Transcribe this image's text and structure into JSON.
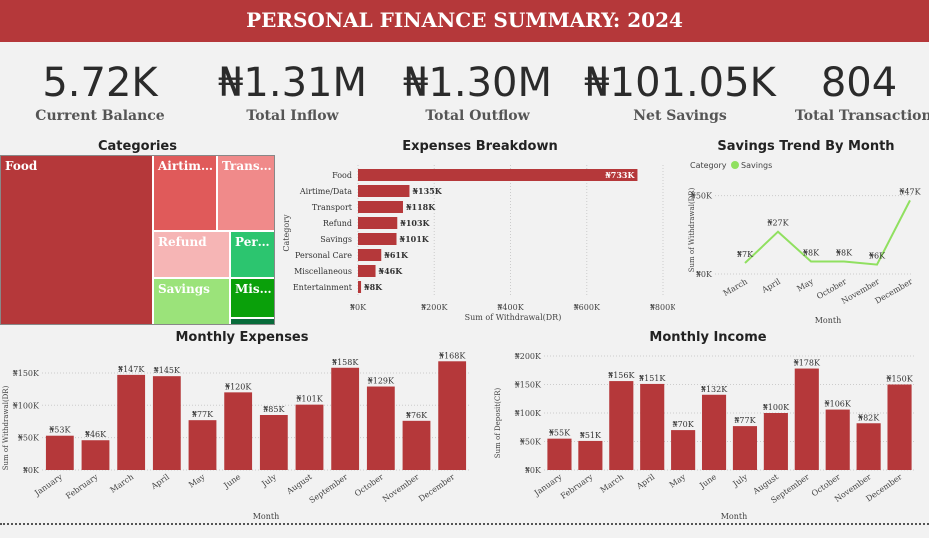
{
  "header": {
    "title": "PERSONAL FINANCE SUMMARY: 2024"
  },
  "kpis": [
    {
      "value": "5.72K",
      "label": "Current Balance"
    },
    {
      "value": "₦1.31M",
      "label": "Total Inflow"
    },
    {
      "value": "₦1.30M",
      "label": "Total Outflow"
    },
    {
      "value": "₦101.05K",
      "label": "Net Savings"
    },
    {
      "value": "804",
      "label": "Total Transactions"
    }
  ],
  "colors": {
    "brand": "#b5383a",
    "savings_line": "#90e060"
  },
  "chart_data": [
    {
      "type": "treemap",
      "title": "Categories",
      "items": [
        {
          "label": "Food",
          "color": "#b5383a"
        },
        {
          "label": "Airtim…",
          "color": "#e05a5a"
        },
        {
          "label": "Trans…",
          "color": "#f08a8a"
        },
        {
          "label": "Refund",
          "color": "#f6b5b5"
        },
        {
          "label": "Per…",
          "color": "#2cc56f"
        },
        {
          "label": "Savings",
          "color": "#9be37a"
        },
        {
          "label": "Mis…",
          "color": "#0aa00a"
        },
        {
          "label": "",
          "color": "#086b3a"
        }
      ]
    },
    {
      "type": "bar",
      "orientation": "horizontal",
      "title": "Expenses Breakdown",
      "xlabel": "Sum of Withdrawal(DR)",
      "ylabel": "Category",
      "xlim": [
        0,
        800000
      ],
      "xticks": [
        "₦0K",
        "₦200K",
        "₦400K",
        "₦600K",
        "₦800K"
      ],
      "categories": [
        "Food",
        "Airtime/Data",
        "Transport",
        "Refund",
        "Savings",
        "Personal Care",
        "Miscellaneous",
        "Entertainment"
      ],
      "values": [
        733000,
        135000,
        118000,
        103000,
        101000,
        61000,
        46000,
        8000
      ],
      "data_labels": [
        "₦733K",
        "₦135K",
        "₦118K",
        "₦103K",
        "₦101K",
        "₦61K",
        "₦46K",
        "₦8K"
      ]
    },
    {
      "type": "line",
      "title": "Savings Trend By Month",
      "xlabel": "Month",
      "ylabel": "Sum of Withdrawal(DR)",
      "legend_title": "Category",
      "series": [
        {
          "name": "Savings",
          "values": [
            7000,
            27000,
            8000,
            8000,
            6000,
            47000
          ]
        }
      ],
      "categories": [
        "March",
        "April",
        "May",
        "October",
        "November",
        "December"
      ],
      "data_labels": [
        "₦7K",
        "₦27K",
        "₦8K",
        "₦8K",
        "₦6K",
        "₦47K"
      ],
      "ylim": [
        0,
        60000
      ],
      "yticks": [
        "₦0K",
        "₦50K"
      ]
    },
    {
      "type": "bar",
      "title": "Monthly Expenses",
      "xlabel": "Month",
      "ylabel": "Sum of Withdrawal(DR)",
      "ylim": [
        0,
        170000
      ],
      "yticks": [
        "₦0K",
        "₦50K",
        "₦100K",
        "₦150K"
      ],
      "categories": [
        "January",
        "February",
        "March",
        "April",
        "May",
        "June",
        "July",
        "August",
        "September",
        "October",
        "November",
        "December"
      ],
      "values": [
        53000,
        46000,
        147000,
        145000,
        77000,
        120000,
        85000,
        101000,
        158000,
        129000,
        76000,
        168000
      ],
      "data_labels": [
        "₦53K",
        "₦46K",
        "₦147K",
        "₦145K",
        "₦77K",
        "₦120K",
        "₦85K",
        "₦101K",
        "₦158K",
        "₦129K",
        "₦76K",
        "₦168K"
      ]
    },
    {
      "type": "bar",
      "title": "Monthly Income",
      "xlabel": "Month",
      "ylabel": "Sum of Deposit(CR)",
      "ylim": [
        0,
        200000
      ],
      "yticks": [
        "₦0K",
        "₦50K",
        "₦100K",
        "₦150K",
        "₦200K"
      ],
      "categories": [
        "January",
        "February",
        "March",
        "April",
        "May",
        "June",
        "July",
        "August",
        "September",
        "October",
        "November",
        "December"
      ],
      "values": [
        55000,
        51000,
        156000,
        151000,
        70000,
        132000,
        77000,
        100000,
        178000,
        106000,
        82000,
        150000
      ],
      "data_labels": [
        "₦55K",
        "₦51K",
        "₦156K",
        "₦151K",
        "₦70K",
        "₦132K",
        "₦77K",
        "₦100K",
        "₦178K",
        "₦106K",
        "₦82K",
        "₦150K"
      ]
    }
  ]
}
